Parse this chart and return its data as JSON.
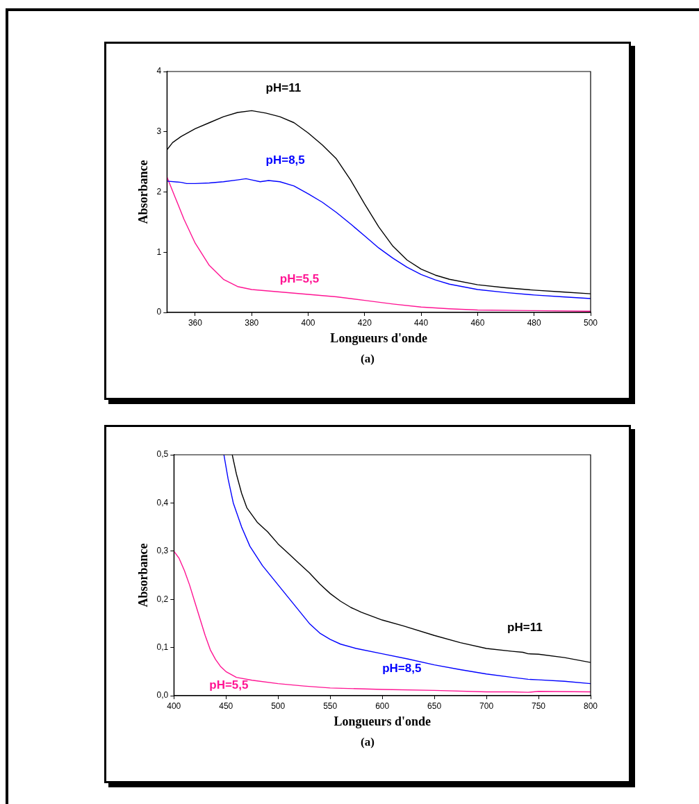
{
  "chart_data": [
    {
      "type": "line",
      "xlabel": "Longueurs d'onde",
      "ylabel": "Absorbance",
      "annotations": [
        "(a)"
      ],
      "xlim": [
        350,
        500
      ],
      "xticks": [
        360,
        380,
        400,
        420,
        440,
        460,
        480,
        500
      ],
      "ylim": [
        0,
        4
      ],
      "yticks": [
        0,
        1,
        2,
        3,
        4
      ],
      "grid": false,
      "legend": false,
      "marker": "none",
      "line_style": "solid",
      "series": [
        {
          "name": "pH=11",
          "color": "#000000",
          "x": [
            350,
            352,
            355,
            360,
            365,
            370,
            375,
            380,
            385,
            390,
            395,
            400,
            405,
            410,
            415,
            420,
            425,
            430,
            435,
            440,
            445,
            450,
            460,
            470,
            480,
            490,
            500
          ],
          "values": [
            2.7,
            2.82,
            2.92,
            3.05,
            3.15,
            3.25,
            3.32,
            3.35,
            3.31,
            3.25,
            3.15,
            2.98,
            2.78,
            2.55,
            2.2,
            1.8,
            1.42,
            1.1,
            0.87,
            0.72,
            0.62,
            0.55,
            0.46,
            0.41,
            0.37,
            0.34,
            0.31
          ]
        },
        {
          "name": "pH=8,5",
          "color": "#0000ff",
          "x": [
            350,
            355,
            357,
            360,
            365,
            370,
            375,
            378,
            380,
            383,
            386,
            390,
            395,
            400,
            405,
            410,
            415,
            420,
            425,
            430,
            435,
            440,
            445,
            450,
            460,
            470,
            480,
            490,
            500
          ],
          "values": [
            2.18,
            2.16,
            2.14,
            2.14,
            2.15,
            2.17,
            2.2,
            2.22,
            2.2,
            2.17,
            2.19,
            2.17,
            2.1,
            1.97,
            1.83,
            1.66,
            1.47,
            1.27,
            1.07,
            0.9,
            0.75,
            0.63,
            0.54,
            0.47,
            0.38,
            0.33,
            0.29,
            0.26,
            0.23
          ]
        },
        {
          "name": "pH=5,5",
          "color": "#ff1493",
          "x": [
            350,
            353,
            356,
            360,
            365,
            370,
            375,
            380,
            390,
            400,
            410,
            420,
            430,
            440,
            450,
            460,
            480,
            500
          ],
          "values": [
            2.25,
            1.9,
            1.55,
            1.15,
            0.78,
            0.55,
            0.43,
            0.38,
            0.34,
            0.3,
            0.26,
            0.2,
            0.14,
            0.09,
            0.06,
            0.04,
            0.03,
            0.02
          ]
        }
      ]
    },
    {
      "type": "line",
      "xlabel": "Longueurs d'onde",
      "ylabel": "Absorbance",
      "annotations": [
        "(a)"
      ],
      "xlim": [
        400,
        800
      ],
      "xticks": [
        400,
        450,
        500,
        550,
        600,
        650,
        700,
        750,
        800
      ],
      "ylim": [
        0,
        0.5
      ],
      "yticks": [
        {
          "value": 0,
          "label": "0,0"
        },
        {
          "value": 0.1,
          "label": "0,1"
        },
        {
          "value": 0.2,
          "label": "0,2"
        },
        {
          "value": 0.3,
          "label": "0,3"
        },
        {
          "value": 0.4,
          "label": "0,4"
        },
        {
          "value": 0.5,
          "label": "0,5"
        }
      ],
      "grid": false,
      "legend": false,
      "marker": "none",
      "line_style": "solid",
      "series": [
        {
          "name": "pH=11",
          "color": "#000000",
          "x": [
            456,
            460,
            465,
            470,
            480,
            490,
            500,
            510,
            520,
            530,
            540,
            550,
            560,
            570,
            580,
            600,
            620,
            650,
            675,
            700,
            725,
            735,
            740,
            750,
            775,
            800
          ],
          "values": [
            0.5,
            0.46,
            0.42,
            0.39,
            0.36,
            0.34,
            0.315,
            0.295,
            0.275,
            0.255,
            0.232,
            0.212,
            0.196,
            0.183,
            0.173,
            0.157,
            0.145,
            0.125,
            0.11,
            0.098,
            0.092,
            0.09,
            0.087,
            0.086,
            0.079,
            0.069
          ]
        },
        {
          "name": "pH=8,5",
          "color": "#0000ff",
          "x": [
            448,
            452,
            457,
            465,
            473,
            485,
            500,
            515,
            530,
            540,
            550,
            560,
            575,
            600,
            625,
            650,
            675,
            700,
            725,
            740,
            750,
            775,
            800
          ],
          "values": [
            0.5,
            0.45,
            0.4,
            0.35,
            0.31,
            0.27,
            0.23,
            0.19,
            0.15,
            0.13,
            0.117,
            0.107,
            0.098,
            0.087,
            0.076,
            0.064,
            0.054,
            0.045,
            0.038,
            0.034,
            0.033,
            0.03,
            0.025
          ]
        },
        {
          "name": "pH=5,5",
          "color": "#ff1493",
          "x": [
            400,
            405,
            410,
            415,
            420,
            425,
            430,
            435,
            440,
            445,
            450,
            460,
            475,
            500,
            525,
            550,
            600,
            650,
            700,
            725,
            740,
            750,
            800
          ],
          "values": [
            0.3,
            0.285,
            0.26,
            0.23,
            0.195,
            0.16,
            0.125,
            0.095,
            0.075,
            0.06,
            0.05,
            0.038,
            0.032,
            0.025,
            0.02,
            0.016,
            0.013,
            0.011,
            0.008,
            0.008,
            0.007,
            0.009,
            0.008
          ]
        }
      ]
    }
  ]
}
